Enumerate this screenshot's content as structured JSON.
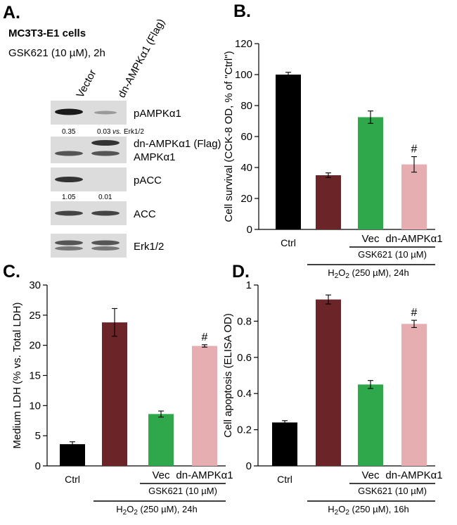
{
  "colors": {
    "ctrl": "#000000",
    "treat": "#6b2428",
    "vec": "#2ea84a",
    "dn": "#e7aeb1"
  },
  "panel_a": {
    "label": "A.",
    "cell_line": "MC3T3-E1 cells",
    "treatment": "GSK621 (10 µM), 2h",
    "lane_labels": [
      "Vector",
      "dn-AMPKα1 (Flag)"
    ],
    "blots": [
      {
        "name": "pAMPKα1",
        "values": [
          "0.35",
          "0.03"
        ],
        "note": "vs.",
        "note_tail": "Erk1/2"
      },
      {
        "name": "dn-AMPKα1 (Flag)",
        "name2": "AMPKα1"
      },
      {
        "name": "pACC",
        "values": [
          "1.05",
          "0.01"
        ]
      },
      {
        "name": "ACC"
      },
      {
        "name": "Erk1/2"
      }
    ]
  },
  "chart_data": [
    {
      "panel": "B.",
      "type": "bar",
      "ylabel": "Cell survival (CCK-8 OD, % of \"Ctrl\")",
      "ylim": [
        0,
        120
      ],
      "yticks": [
        "0",
        "20",
        "40",
        "60",
        "80",
        "100",
        "120"
      ],
      "categories": [
        "Ctrl",
        "",
        "Vec",
        "dn-AMPKα1"
      ],
      "values": [
        100,
        35,
        72.5,
        42
      ],
      "errors": [
        1.5,
        1.5,
        4,
        5
      ],
      "annotations": [
        "",
        "",
        "",
        "#"
      ],
      "groups": [
        {
          "label": "GSK621 (10 µM)",
          "h2o2": "H",
          "sub": "2",
          "o2": "O",
          "sub2": "2",
          "tail": " (250 µM), 24h"
        }
      ]
    },
    {
      "panel": "C.",
      "type": "bar",
      "ylabel": "Medium LDH (% vs. Total LDH)",
      "ylim": [
        0,
        30
      ],
      "yticks": [
        "0",
        "5",
        "10",
        "15",
        "20",
        "25",
        "30"
      ],
      "categories": [
        "Ctrl",
        "",
        "Vec",
        "dn-AMPKα1"
      ],
      "values": [
        3.6,
        23.8,
        8.6,
        19.9
      ],
      "errors": [
        0.4,
        2.3,
        0.5,
        0.2
      ],
      "annotations": [
        "",
        "",
        "",
        "#"
      ],
      "groups": [
        {
          "label": "GSK621 (10 µM)",
          "h2o2": "H",
          "sub": "2",
          "o2": "O",
          "sub2": "2",
          "tail": " (250 µM), 24h"
        }
      ]
    },
    {
      "panel": "D.",
      "type": "bar",
      "ylabel": "Cell apoptosis (ELISA OD)",
      "ylim": [
        0,
        1
      ],
      "yticks": [
        "0",
        "0.2",
        "0.4",
        "0.6",
        "0.8",
        "1"
      ],
      "categories": [
        "Ctrl",
        "",
        "Vec",
        "dn-AMPKα1"
      ],
      "values": [
        0.24,
        0.92,
        0.45,
        0.785
      ],
      "errors": [
        0.01,
        0.025,
        0.022,
        0.02
      ],
      "annotations": [
        "",
        "",
        "",
        "#"
      ],
      "groups": [
        {
          "label": "GSK621 (10 µM)",
          "h2o2": "H",
          "sub": "2",
          "o2": "O",
          "sub2": "2",
          "tail": " (250 µM), 16h"
        }
      ]
    }
  ]
}
